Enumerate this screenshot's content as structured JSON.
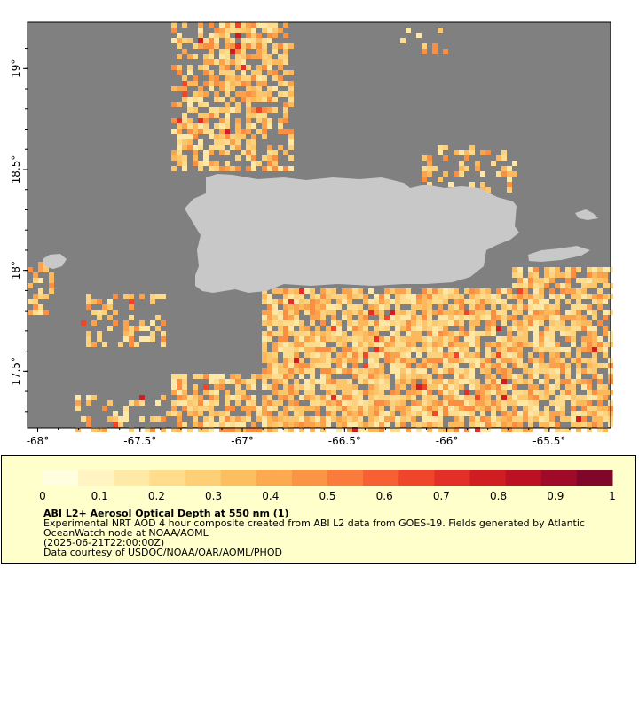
{
  "map": {
    "background_color": "#808080",
    "land_color": "#c8c8c8",
    "lon_range": [
      -68.05,
      -65.2
    ],
    "lat_range": [
      17.22,
      19.23
    ],
    "lon_ticks": [
      {
        "value": -68,
        "label": "-68°"
      },
      {
        "value": -67.5,
        "label": "-67.5°"
      },
      {
        "value": -67,
        "label": "-67°"
      },
      {
        "value": -66.5,
        "label": "-66.5°"
      },
      {
        "value": -66,
        "label": "-66°"
      },
      {
        "value": -65.5,
        "label": "-65.5°"
      }
    ],
    "lat_ticks": [
      {
        "value": 19,
        "label": "19°"
      },
      {
        "value": 18.5,
        "label": "18.5°"
      },
      {
        "value": 18,
        "label": "18°"
      },
      {
        "value": 17.5,
        "label": "17.5°"
      }
    ]
  },
  "colorbar": {
    "min": 0,
    "max": 1,
    "colors": [
      "#ffffe0",
      "#fff4c2",
      "#ffe9a6",
      "#ffdd8c",
      "#fdd077",
      "#fcbf5f",
      "#fca94f",
      "#fc9445",
      "#fb7b3c",
      "#f75f34",
      "#ef452b",
      "#e32f27",
      "#d01d22",
      "#bb1125",
      "#a00a29",
      "#80062a"
    ],
    "tick_labels": [
      "0",
      "0.1",
      "0.2",
      "0.3",
      "0.4",
      "0.5",
      "0.6",
      "0.7",
      "0.8",
      "0.9",
      "1"
    ]
  },
  "legend": {
    "title": "ABI L2+ Aerosol Optical Depth at 550 nm (1)",
    "description_lines": [
      "Experimental NRT AOD 4 hour composite created from ABI L2 data from GOES-19. Fields generated by Atlantic",
      "OceanWatch node at NOAA/AOML",
      "(2025-06-21T22:00:00Z)",
      "Data courtesy of USDOC/NOAA/OAR/AOML/PHOD"
    ]
  }
}
